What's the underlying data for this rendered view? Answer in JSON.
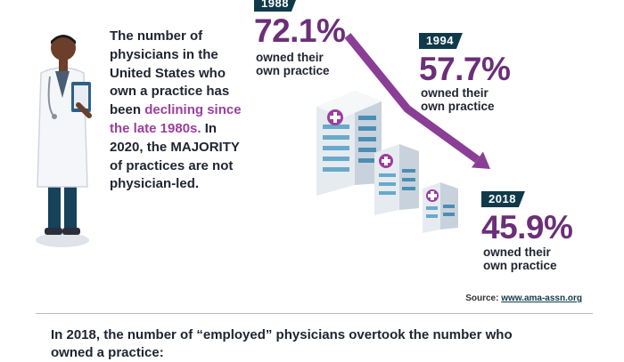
{
  "intro": {
    "before": "The number of physicians in the United States who own a practice has been",
    "highlight": "declining since the late 1980s.",
    "after": "In 2020, the MAJORITY of practices are not physician-led."
  },
  "chart_data": {
    "type": "line",
    "x": [
      "1988",
      "1994",
      "2018"
    ],
    "values": [
      72.1,
      57.7,
      45.9
    ],
    "series": [
      {
        "values": [
          72.1,
          57.7,
          45.9
        ]
      }
    ],
    "value_labels": [
      "72.1%",
      "57.7%",
      "45.9%"
    ],
    "caption": "owned their own practice",
    "colors": {
      "accent": "#6b2f78",
      "tag": "#103a4a",
      "arrow": "#8a3e96"
    }
  },
  "source": {
    "label": "Source:",
    "link": "www.ama-assn.org"
  },
  "bottom_text": "In 2018, the number of “employed” physicians overtook the number who owned a practice:"
}
